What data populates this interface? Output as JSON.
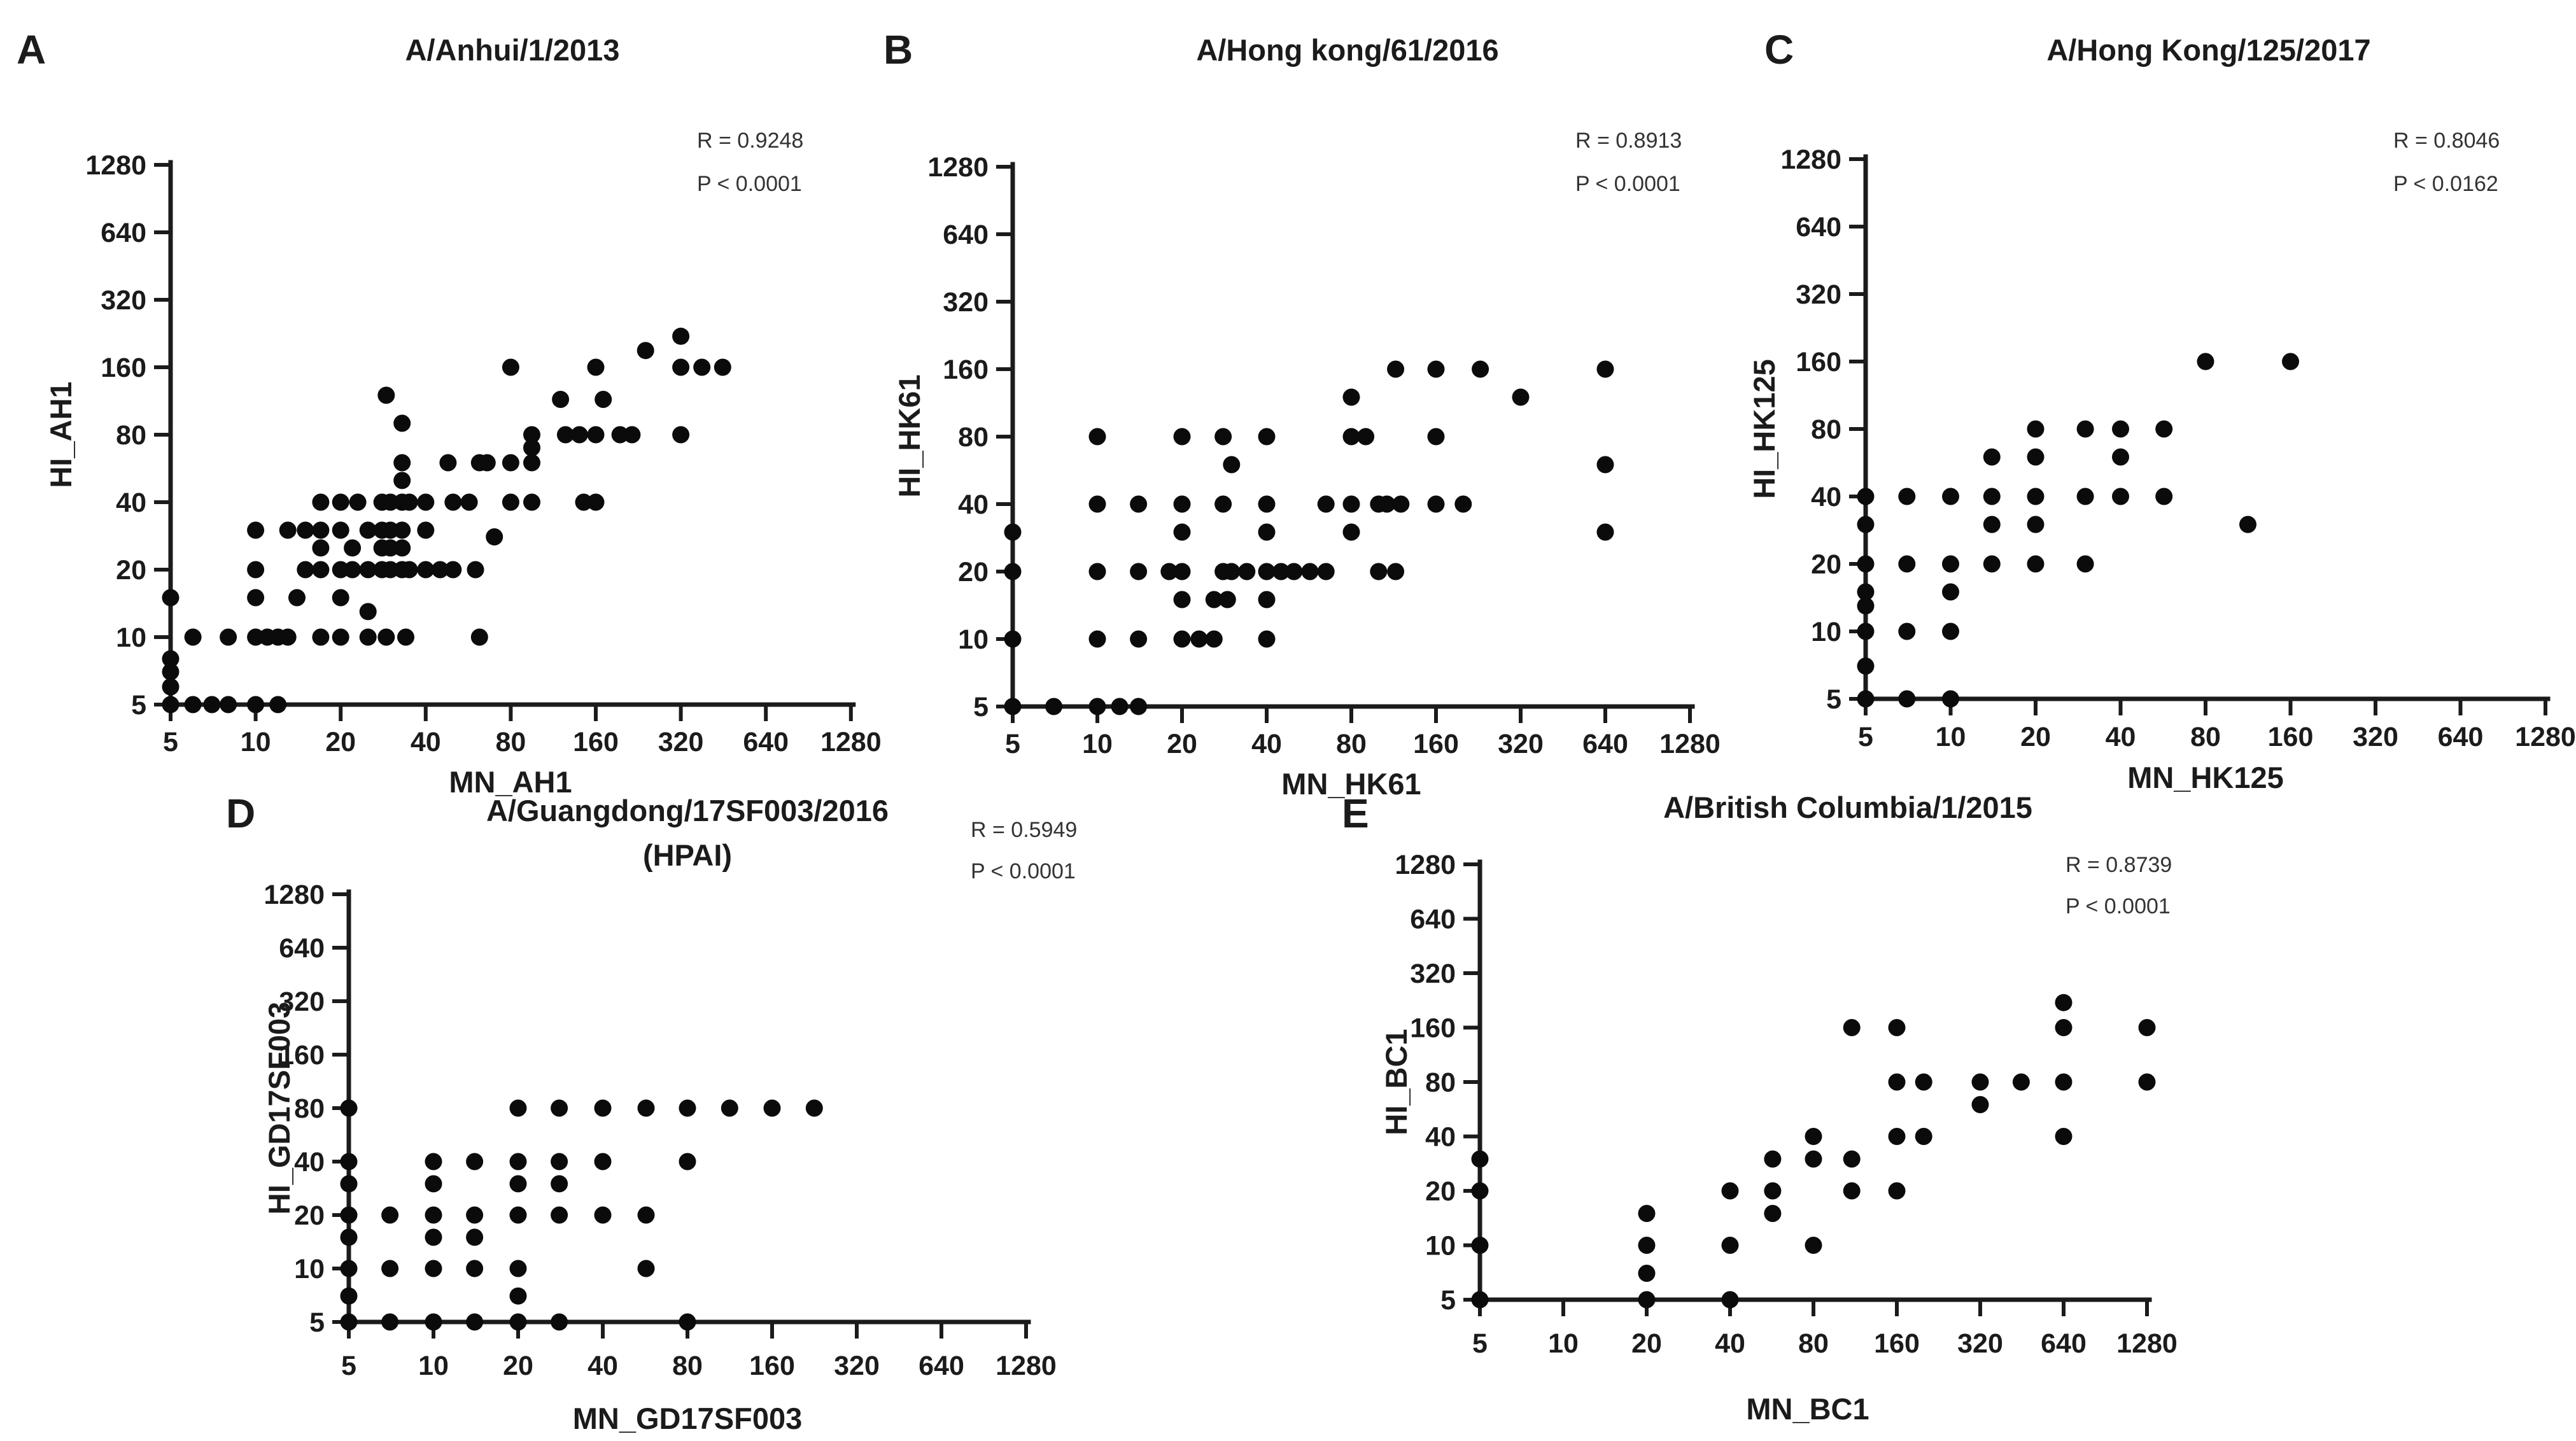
{
  "figure": {
    "background": "#ffffff",
    "dot_color": "#0b0b0b",
    "axis_color": "#1b1b1b",
    "text_color": "#1b1b1b",
    "stats_color": "#333333"
  },
  "chart_data": [
    {
      "type": "scatter",
      "panel_label": "A",
      "title": "A/Anhui/1/2013",
      "subtitle": "",
      "annotations": [
        "R = 0.9248",
        "P < 0.0001"
      ],
      "xlabel": "MN_AH1",
      "ylabel": "HI_AH1",
      "x_scale": "log2",
      "y_scale": "log2",
      "xlim": [
        5,
        1280
      ],
      "ylim": [
        5,
        1280
      ],
      "ticks": [
        5,
        10,
        20,
        40,
        80,
        160,
        320,
        640,
        1280
      ],
      "grid": false,
      "points": [
        [
          5,
          15
        ],
        [
          5,
          8
        ],
        [
          5,
          7
        ],
        [
          5,
          6
        ],
        [
          5,
          5
        ],
        [
          6,
          5
        ],
        [
          7,
          5
        ],
        [
          8,
          5
        ],
        [
          10,
          5
        ],
        [
          12,
          5
        ],
        [
          6,
          10
        ],
        [
          8,
          10
        ],
        [
          10,
          10
        ],
        [
          11,
          10
        ],
        [
          12,
          10
        ],
        [
          13,
          10
        ],
        [
          17,
          10
        ],
        [
          20,
          10
        ],
        [
          25,
          10
        ],
        [
          29,
          10
        ],
        [
          34,
          10
        ],
        [
          62,
          10
        ],
        [
          25,
          13
        ],
        [
          10,
          15
        ],
        [
          14,
          15
        ],
        [
          20,
          15
        ],
        [
          10,
          20
        ],
        [
          15,
          20
        ],
        [
          17,
          20
        ],
        [
          20,
          20
        ],
        [
          22,
          20
        ],
        [
          25,
          20
        ],
        [
          28,
          20
        ],
        [
          30,
          20
        ],
        [
          33,
          20
        ],
        [
          35,
          20
        ],
        [
          40,
          20
        ],
        [
          45,
          20
        ],
        [
          50,
          20
        ],
        [
          60,
          20
        ],
        [
          17,
          25
        ],
        [
          22,
          25
        ],
        [
          28,
          25
        ],
        [
          30,
          25
        ],
        [
          33,
          25
        ],
        [
          10,
          30
        ],
        [
          13,
          30
        ],
        [
          15,
          30
        ],
        [
          17,
          30
        ],
        [
          20,
          30
        ],
        [
          25,
          30
        ],
        [
          28,
          30
        ],
        [
          30,
          30
        ],
        [
          33,
          30
        ],
        [
          40,
          30
        ],
        [
          70,
          28
        ],
        [
          17,
          40
        ],
        [
          20,
          40
        ],
        [
          23,
          40
        ],
        [
          28,
          40
        ],
        [
          30,
          40
        ],
        [
          33,
          40
        ],
        [
          35,
          40
        ],
        [
          40,
          40
        ],
        [
          50,
          40
        ],
        [
          57,
          40
        ],
        [
          80,
          40
        ],
        [
          95,
          40
        ],
        [
          145,
          40
        ],
        [
          160,
          40
        ],
        [
          33,
          50
        ],
        [
          33,
          60
        ],
        [
          48,
          60
        ],
        [
          62,
          60
        ],
        [
          66,
          60
        ],
        [
          80,
          60
        ],
        [
          95,
          60
        ],
        [
          95,
          70
        ],
        [
          95,
          80
        ],
        [
          125,
          80
        ],
        [
          140,
          80
        ],
        [
          160,
          80
        ],
        [
          195,
          80
        ],
        [
          215,
          80
        ],
        [
          320,
          80
        ],
        [
          29,
          120
        ],
        [
          33,
          90
        ],
        [
          120,
          115
        ],
        [
          170,
          115
        ],
        [
          80,
          160
        ],
        [
          160,
          160
        ],
        [
          320,
          160
        ],
        [
          380,
          160
        ],
        [
          450,
          160
        ],
        [
          240,
          190
        ],
        [
          320,
          220
        ]
      ]
    },
    {
      "type": "scatter",
      "panel_label": "B",
      "title": "A/Hong kong/61/2016",
      "subtitle": "",
      "annotations": [
        "R = 0.8913",
        "P < 0.0001"
      ],
      "xlabel": "MN_HK61",
      "ylabel": "HI_HK61",
      "x_scale": "log2",
      "y_scale": "log2",
      "xlim": [
        5,
        1280
      ],
      "ylim": [
        5,
        1280
      ],
      "ticks": [
        5,
        10,
        20,
        40,
        80,
        160,
        320,
        640,
        1280
      ],
      "grid": false,
      "points": [
        [
          5,
          30
        ],
        [
          5,
          20
        ],
        [
          5,
          10
        ],
        [
          5,
          5
        ],
        [
          7,
          5
        ],
        [
          10,
          5
        ],
        [
          12,
          5
        ],
        [
          14,
          5
        ],
        [
          10,
          10
        ],
        [
          14,
          10
        ],
        [
          20,
          10
        ],
        [
          23,
          10
        ],
        [
          26,
          10
        ],
        [
          40,
          10
        ],
        [
          20,
          15
        ],
        [
          26,
          15
        ],
        [
          29,
          15
        ],
        [
          40,
          15
        ],
        [
          10,
          20
        ],
        [
          14,
          20
        ],
        [
          18,
          20
        ],
        [
          20,
          20
        ],
        [
          28,
          20
        ],
        [
          30,
          20
        ],
        [
          34,
          20
        ],
        [
          40,
          20
        ],
        [
          45,
          20
        ],
        [
          50,
          20
        ],
        [
          57,
          20
        ],
        [
          65,
          20
        ],
        [
          100,
          20
        ],
        [
          115,
          20
        ],
        [
          20,
          30
        ],
        [
          40,
          30
        ],
        [
          80,
          30
        ],
        [
          640,
          30
        ],
        [
          10,
          40
        ],
        [
          14,
          40
        ],
        [
          20,
          40
        ],
        [
          28,
          40
        ],
        [
          40,
          40
        ],
        [
          65,
          40
        ],
        [
          80,
          40
        ],
        [
          100,
          40
        ],
        [
          107,
          40
        ],
        [
          120,
          40
        ],
        [
          160,
          40
        ],
        [
          200,
          40
        ],
        [
          30,
          60
        ],
        [
          640,
          60
        ],
        [
          10,
          80
        ],
        [
          20,
          80
        ],
        [
          28,
          80
        ],
        [
          40,
          80
        ],
        [
          80,
          80
        ],
        [
          90,
          80
        ],
        [
          160,
          80
        ],
        [
          80,
          120
        ],
        [
          320,
          120
        ],
        [
          115,
          160
        ],
        [
          160,
          160
        ],
        [
          230,
          160
        ],
        [
          640,
          160
        ]
      ]
    },
    {
      "type": "scatter",
      "panel_label": "C",
      "title": "A/Hong Kong/125/2017",
      "subtitle": "",
      "annotations": [
        "R = 0.8046",
        "P < 0.0162"
      ],
      "xlabel": "MN_HK125",
      "ylabel": "HI_HK125",
      "x_scale": "log2",
      "y_scale": "log2",
      "xlim": [
        5,
        1280
      ],
      "ylim": [
        5,
        1280
      ],
      "ticks": [
        5,
        10,
        20,
        40,
        80,
        160,
        320,
        640,
        1280
      ],
      "grid": false,
      "points": [
        [
          5,
          40
        ],
        [
          5,
          30
        ],
        [
          5,
          20
        ],
        [
          5,
          15
        ],
        [
          5,
          13
        ],
        [
          5,
          10
        ],
        [
          5,
          7
        ],
        [
          5,
          5
        ],
        [
          7,
          40
        ],
        [
          7,
          20
        ],
        [
          7,
          10
        ],
        [
          7,
          5
        ],
        [
          10,
          40
        ],
        [
          10,
          20
        ],
        [
          10,
          15
        ],
        [
          10,
          10
        ],
        [
          10,
          5
        ],
        [
          14,
          60
        ],
        [
          14,
          40
        ],
        [
          14,
          30
        ],
        [
          14,
          20
        ],
        [
          20,
          80
        ],
        [
          20,
          60
        ],
        [
          20,
          40
        ],
        [
          20,
          30
        ],
        [
          20,
          20
        ],
        [
          30,
          80
        ],
        [
          30,
          40
        ],
        [
          30,
          20
        ],
        [
          40,
          80
        ],
        [
          40,
          60
        ],
        [
          40,
          40
        ],
        [
          57,
          80
        ],
        [
          57,
          40
        ],
        [
          80,
          160
        ],
        [
          113,
          30
        ],
        [
          160,
          160
        ]
      ]
    },
    {
      "type": "scatter",
      "panel_label": "D",
      "title": "A/Guangdong/17SF003/2016",
      "subtitle": "(HPAI)",
      "annotations": [
        "R = 0.5949",
        "P < 0.0001"
      ],
      "xlabel": "MN_GD17SF003",
      "ylabel": "HI_GD17SF003",
      "x_scale": "log2",
      "y_scale": "log2",
      "xlim": [
        5,
        1280
      ],
      "ylim": [
        5,
        1280
      ],
      "ticks": [
        5,
        10,
        20,
        40,
        80,
        160,
        320,
        640,
        1280
      ],
      "grid": false,
      "points": [
        [
          5,
          80
        ],
        [
          5,
          40
        ],
        [
          5,
          30
        ],
        [
          5,
          20
        ],
        [
          5,
          15
        ],
        [
          5,
          10
        ],
        [
          5,
          7
        ],
        [
          5,
          5
        ],
        [
          7,
          20
        ],
        [
          7,
          10
        ],
        [
          7,
          5
        ],
        [
          10,
          40
        ],
        [
          10,
          30
        ],
        [
          10,
          20
        ],
        [
          10,
          15
        ],
        [
          10,
          10
        ],
        [
          10,
          5
        ],
        [
          14,
          40
        ],
        [
          14,
          20
        ],
        [
          14,
          15
        ],
        [
          14,
          10
        ],
        [
          14,
          5
        ],
        [
          20,
          80
        ],
        [
          20,
          40
        ],
        [
          20,
          30
        ],
        [
          20,
          20
        ],
        [
          20,
          10
        ],
        [
          20,
          7
        ],
        [
          20,
          5
        ],
        [
          28,
          80
        ],
        [
          28,
          40
        ],
        [
          28,
          30
        ],
        [
          28,
          20
        ],
        [
          28,
          5
        ],
        [
          40,
          80
        ],
        [
          40,
          40
        ],
        [
          40,
          20
        ],
        [
          57,
          80
        ],
        [
          57,
          20
        ],
        [
          57,
          10
        ],
        [
          80,
          80
        ],
        [
          80,
          40
        ],
        [
          80,
          5
        ],
        [
          113,
          80
        ],
        [
          160,
          80
        ],
        [
          226,
          80
        ]
      ]
    },
    {
      "type": "scatter",
      "panel_label": "E",
      "title": "A/British Columbia/1/2015",
      "subtitle": "",
      "annotations": [
        "R = 0.8739",
        "P < 0.0001"
      ],
      "xlabel": "MN_BC1",
      "ylabel": "HI_BC1",
      "x_scale": "log2",
      "y_scale": "log2",
      "xlim": [
        5,
        1280
      ],
      "ylim": [
        5,
        1280
      ],
      "ticks": [
        5,
        10,
        20,
        40,
        80,
        160,
        320,
        640,
        1280
      ],
      "grid": false,
      "points": [
        [
          5,
          30
        ],
        [
          5,
          20
        ],
        [
          5,
          10
        ],
        [
          5,
          5
        ],
        [
          20,
          15
        ],
        [
          20,
          10
        ],
        [
          20,
          7
        ],
        [
          20,
          5
        ],
        [
          40,
          20
        ],
        [
          40,
          10
        ],
        [
          40,
          5
        ],
        [
          57,
          30
        ],
        [
          57,
          20
        ],
        [
          57,
          15
        ],
        [
          80,
          40
        ],
        [
          80,
          30
        ],
        [
          80,
          10
        ],
        [
          110,
          160
        ],
        [
          110,
          30
        ],
        [
          110,
          20
        ],
        [
          160,
          160
        ],
        [
          160,
          80
        ],
        [
          160,
          40
        ],
        [
          160,
          20
        ],
        [
          200,
          80
        ],
        [
          200,
          40
        ],
        [
          320,
          80
        ],
        [
          320,
          60
        ],
        [
          450,
          80
        ],
        [
          640,
          220
        ],
        [
          640,
          160
        ],
        [
          640,
          80
        ],
        [
          640,
          40
        ],
        [
          1280,
          160
        ],
        [
          1280,
          80
        ]
      ]
    }
  ]
}
